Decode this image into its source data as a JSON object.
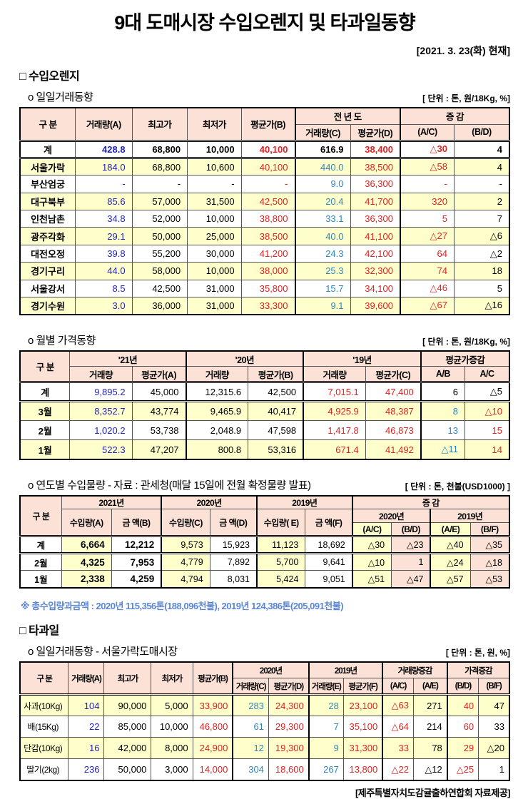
{
  "title": "9대 도매시장 수입오렌지 및 타과일동향",
  "date_note": "[2021. 3. 23(화) 현재]",
  "footer": "[제주특별자치도감귤출하연합회 자료제공]",
  "orange": {
    "heading": "□ 수입오렌지",
    "daily": {
      "label": "o 일일거래동향",
      "unit": "[ 단위 : 톤, 원/18Kg, %]",
      "h": {
        "gubun": "구    분",
        "a": "거래량(A)",
        "high": "최고가",
        "low": "최저가",
        "avgb": "평균가(B)",
        "prev": "전 년 도",
        "diff": "증   감",
        "c": "거래량(C)",
        "d": "평균가(D)",
        "ac": "(A/C)",
        "bd": "(B/D)"
      },
      "rows": [
        [
          "계",
          "428.8",
          "68,800",
          "10,000",
          "40,100",
          "616.9",
          "38,400",
          "△30",
          "4"
        ],
        [
          "서울가락",
          "184.0",
          "68,800",
          "10,600",
          "40,100",
          "440.0",
          "38,500",
          "△58",
          "4"
        ],
        [
          "부산엄궁",
          "-",
          "-",
          "-",
          "-",
          "9.0",
          "36,300",
          "-",
          "-"
        ],
        [
          "대구북부",
          "85.6",
          "57,000",
          "31,500",
          "42,500",
          "20.4",
          "41,700",
          "320",
          "2"
        ],
        [
          "인천남촌",
          "34.8",
          "52,000",
          "10,000",
          "38,800",
          "33.1",
          "36,300",
          "5",
          "7"
        ],
        [
          "광주각화",
          "29.1",
          "50,000",
          "25,000",
          "38,500",
          "40.0",
          "41,100",
          "△27",
          "△6"
        ],
        [
          "대전오정",
          "39.8",
          "55,200",
          "30,000",
          "41,200",
          "24.3",
          "42,100",
          "64",
          "△2"
        ],
        [
          "경기구리",
          "44.0",
          "58,000",
          "10,000",
          "38,000",
          "25.3",
          "32,300",
          "74",
          "18"
        ],
        [
          "서울강서",
          "8.5",
          "42,500",
          "31,000",
          "35,800",
          "15.7",
          "34,100",
          "△46",
          "5"
        ],
        [
          "경기수원",
          "3.0",
          "36,000",
          "31,000",
          "33,300",
          "9.1",
          "39,600",
          "△67",
          "△16"
        ]
      ]
    },
    "monthly": {
      "label": "o 월별 가격동향",
      "unit": "[ 단위 : 톤, 원/18Kg, %]",
      "h": {
        "gubun": "구    분",
        "y21": "'21년",
        "y20": "'20년",
        "y19": "'19년",
        "avgdiff": "평균가증감",
        "vol": "거래량",
        "avga": "평균가(A)",
        "avgb": "평균가(B)",
        "avgc": "평균가(C)",
        "ab": "A/B",
        "ac": "A/C"
      },
      "rows": [
        [
          "계",
          "9,895.2",
          "45,000",
          "12,315.6",
          "42,500",
          "7,015.1",
          "47,400",
          "6",
          "△5"
        ],
        [
          "3월",
          "8,352.7",
          "43,774",
          "9,465.9",
          "40,417",
          "4,925.9",
          "48,387",
          "8",
          "△10"
        ],
        [
          "2월",
          "1,020.2",
          "53,738",
          "2,048.9",
          "47,598",
          "1,417.8",
          "46,873",
          "13",
          "15"
        ],
        [
          "1월",
          "522.3",
          "47,207",
          "800.8",
          "53,316",
          "671.4",
          "41,492",
          "△11",
          "14"
        ]
      ]
    },
    "yearly": {
      "label": "o 연도별 수입물량 - 자료 : 관세청(매달 15일에 전월 확정물량 발표)",
      "unit": "[ 단위 : 톤, 천불(USD1000) ]",
      "h": {
        "gubun": "구 분",
        "y2021": "2021년",
        "y2020": "2020년",
        "y2019": "2019년",
        "diff": "증    감",
        "impA": "수입량(A)",
        "amtB": "금 액(B)",
        "impC": "수입량(C)",
        "amtD": "금 액(D)",
        "impE": "수입량( E)",
        "amtF": "금 액(F)",
        "ac": "(A/C)",
        "bd": "(B/D)",
        "ae": "(A/E)",
        "bf": "(B/F)"
      },
      "rows": [
        [
          "계",
          "6,664",
          "12,212",
          "9,573",
          "15,923",
          "11,123",
          "18,692",
          "△30",
          "△23",
          "△40",
          "△35"
        ],
        [
          "2월",
          "4,325",
          "7,953",
          "4,779",
          "7,892",
          "5,700",
          "9,641",
          "△10",
          "1",
          "△24",
          "△18"
        ],
        [
          "1월",
          "2,338",
          "4,259",
          "4,794",
          "8,031",
          "5,424",
          "9,051",
          "△51",
          "△47",
          "△57",
          "△53"
        ]
      ]
    },
    "footnote": "※ 총수입량과금액 : 2020년 115,356톤(188,096천불),  2019년 124,386톤(205,091천불)"
  },
  "other": {
    "heading": "□ 타과일",
    "daily": {
      "label": "o 일일거래동향 - 서울가락도매시장",
      "unit": "[ 단위 : 톤, 원, %]",
      "h": {
        "gubun": "구 분",
        "a": "거래량(A)",
        "high": "최고가",
        "low": "최저가",
        "avgb": "평균가(B)",
        "y2020": "2020년",
        "y2019": "2019년",
        "voldiff": "거래량증감",
        "pricediff": "가격증감",
        "c": "거래량(C)",
        "d": "평균가(D)",
        "e": "거래량(E)",
        "f": "평균가(F)",
        "ac": "(A/C)",
        "ae": "(A/E)",
        "bd": "(B/D)",
        "bf": "(B/F)"
      },
      "rows": [
        [
          "사과(10Kg)",
          "104",
          "90,000",
          "5,000",
          "33,900",
          "283",
          "24,300",
          "28",
          "23,100",
          "△63",
          "271",
          "40",
          "47"
        ],
        [
          "배(15Kg)",
          "22",
          "85,000",
          "10,000",
          "46,800",
          "61",
          "29,300",
          "7",
          "35,100",
          "△64",
          "214",
          "60",
          "33"
        ],
        [
          "단감(10Kg)",
          "16",
          "42,000",
          "8,000",
          "24,900",
          "12",
          "19,300",
          "9",
          "31,300",
          "33",
          "78",
          "29",
          "△20"
        ],
        [
          "딸기(2kg)",
          "236",
          "50,000",
          "3,000",
          "14,000",
          "304",
          "18,600",
          "267",
          "13,800",
          "△22",
          "△12",
          "△25",
          "1"
        ]
      ]
    }
  }
}
